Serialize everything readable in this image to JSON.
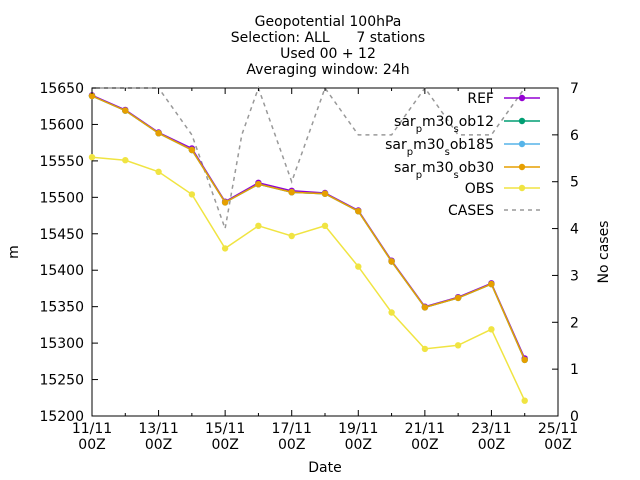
{
  "chart_data": {
    "type": "line",
    "title_lines": [
      "Geopotential 100hPa",
      "Selection: ALL      7 stations",
      "Used 00 + 12",
      "Averaging window: 24h"
    ],
    "xlabel": "Date",
    "ylabel": "m",
    "y2label": "No cases",
    "xlim": [
      0,
      14
    ],
    "ylim": [
      15200,
      15650
    ],
    "y2lim": [
      0,
      7
    ],
    "x_ticks": [
      {
        "x": 0,
        "line1": "11/11",
        "line2": "00Z"
      },
      {
        "x": 2,
        "line1": "13/11",
        "line2": "00Z"
      },
      {
        "x": 4,
        "line1": "15/11",
        "line2": "00Z"
      },
      {
        "x": 6,
        "line1": "17/11",
        "line2": "00Z"
      },
      {
        "x": 8,
        "line1": "19/11",
        "line2": "00Z"
      },
      {
        "x": 10,
        "line1": "21/11",
        "line2": "00Z"
      },
      {
        "x": 12,
        "line1": "23/11",
        "line2": "00Z"
      },
      {
        "x": 14,
        "line1": "25/11",
        "line2": "00Z"
      }
    ],
    "y_ticks": [
      "15200",
      "15250",
      "15300",
      "15350",
      "15400",
      "15450",
      "15500",
      "15550",
      "15600",
      "15650"
    ],
    "y2_ticks": [
      "0",
      "1",
      "2",
      "3",
      "4",
      "5",
      "6",
      "7"
    ],
    "x": [
      0,
      1,
      2,
      3,
      4,
      5,
      6,
      7,
      8,
      9,
      10,
      11,
      12,
      13
    ],
    "series": [
      {
        "name": "REF",
        "color": "#9400d3",
        "axis": "y1",
        "style": "line-points",
        "values": [
          15640,
          15620,
          15589,
          15567,
          15494,
          15520,
          15509,
          15506,
          15482,
          15413,
          15350,
          15363,
          15382,
          15279
        ]
      },
      {
        "name": "sar_p m30_s ob12",
        "name_parts": [
          [
            "sar",
            ""
          ],
          [
            "p",
            "sub"
          ],
          [
            "m30",
            ""
          ],
          [
            "s",
            "sub"
          ],
          [
            "ob12",
            ""
          ]
        ],
        "color": "#009e73",
        "axis": "y1",
        "style": "line-points",
        "values": [
          15639,
          15619,
          15588,
          15565,
          15493,
          15518,
          15507,
          15505,
          15481,
          15412,
          15349,
          15362,
          15381,
          15277
        ]
      },
      {
        "name": "sar_p m30_s ob185",
        "name_parts": [
          [
            "sar",
            ""
          ],
          [
            "p",
            "sub"
          ],
          [
            "m30",
            ""
          ],
          [
            "s",
            "sub"
          ],
          [
            "ob185",
            ""
          ]
        ],
        "color": "#56b4e9",
        "axis": "y1",
        "style": "line-points",
        "values": [
          15639,
          15619,
          15588,
          15565,
          15493,
          15518,
          15507,
          15505,
          15481,
          15412,
          15349,
          15362,
          15381,
          15277
        ]
      },
      {
        "name": "sar_p m30_s ob30",
        "name_parts": [
          [
            "sar",
            ""
          ],
          [
            "p",
            "sub"
          ],
          [
            "m30",
            ""
          ],
          [
            "s",
            "sub"
          ],
          [
            "ob30",
            ""
          ]
        ],
        "color": "#e69f00",
        "axis": "y1",
        "style": "line-points",
        "values": [
          15639,
          15619,
          15588,
          15565,
          15493,
          15518,
          15507,
          15505,
          15481,
          15412,
          15349,
          15362,
          15381,
          15277
        ]
      },
      {
        "name": "OBS",
        "color": "#f0e442",
        "axis": "y1",
        "style": "line-points",
        "values": [
          15555,
          15551,
          15535,
          15504,
          15430,
          15461,
          15447,
          15461,
          15405,
          15342,
          15292,
          15297,
          15319,
          15221
        ]
      },
      {
        "name": "CASES",
        "color": "#999999",
        "axis": "y2",
        "style": "dashed",
        "x": [
          0,
          1,
          1.5,
          2,
          2.5,
          3,
          3.5,
          4,
          4.5,
          5,
          5.5,
          6,
          6.5,
          7,
          7.5,
          8,
          8.5,
          9,
          9.5,
          10,
          10.5,
          11,
          11.5,
          12,
          12.5,
          13
        ],
        "values": [
          7,
          7,
          7,
          7,
          6.5,
          6,
          5,
          4,
          6,
          7,
          6,
          5,
          6,
          7,
          6.5,
          6,
          6,
          6,
          6.5,
          7,
          6.5,
          6,
          6,
          6,
          6.5,
          7
        ]
      }
    ],
    "legend_position": "top-right",
    "grid": false,
    "point_marker": "filled-circle"
  }
}
